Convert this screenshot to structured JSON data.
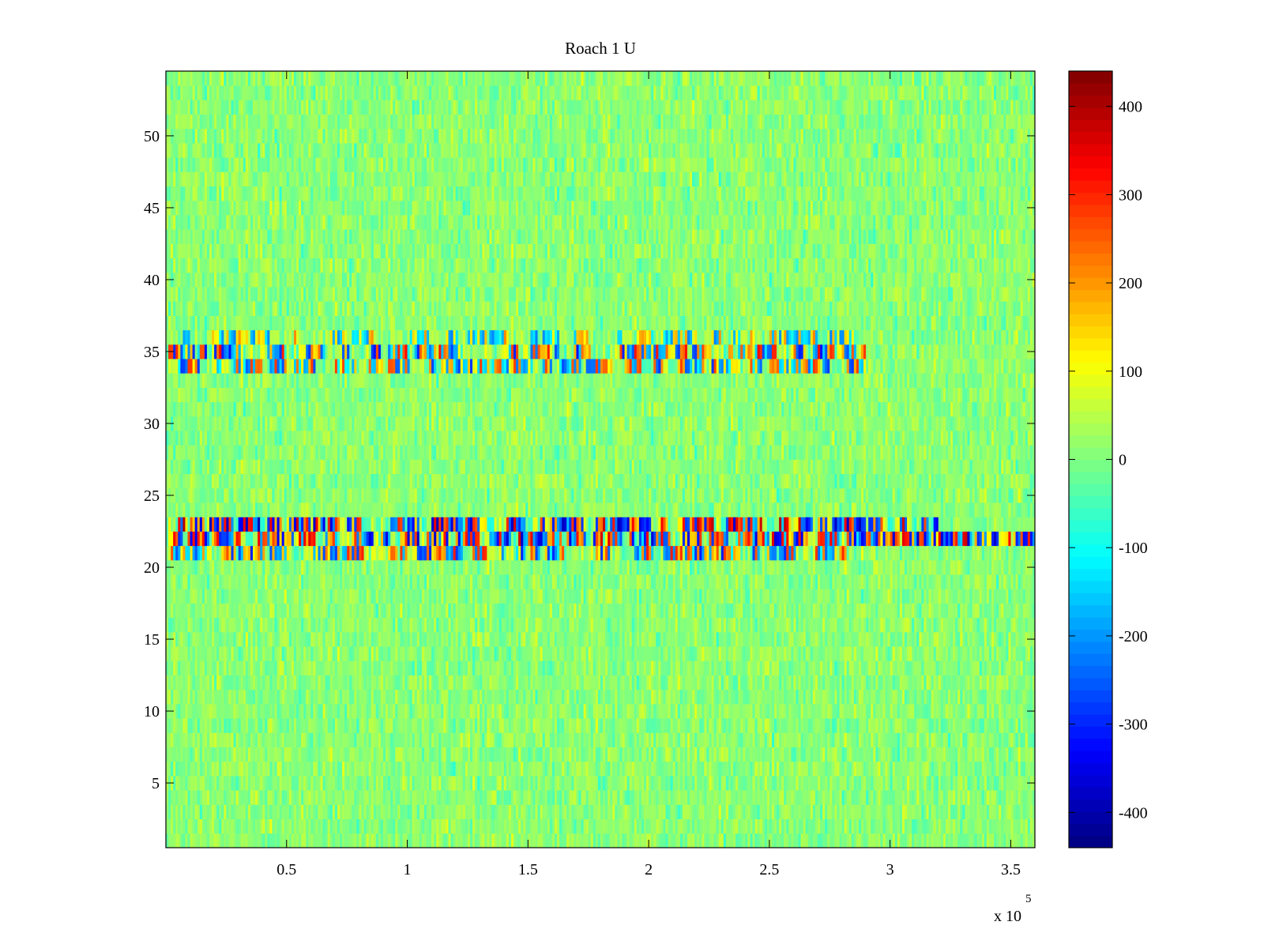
{
  "chart_data": {
    "type": "heatmap",
    "title": "Roach 1 U",
    "xlabel": "",
    "ylabel": "",
    "xlim": [
      0,
      360000
    ],
    "ylim": [
      0.5,
      54.5
    ],
    "x_ticks": [
      50000,
      100000,
      150000,
      200000,
      250000,
      300000,
      350000
    ],
    "x_tick_labels": [
      "0.5",
      "1",
      "1.5",
      "2",
      "2.5",
      "3",
      "3.5"
    ],
    "x_exponent_label": "x 10",
    "x_exponent_power": "5",
    "y_ticks": [
      5,
      10,
      15,
      20,
      25,
      30,
      35,
      40,
      45,
      50
    ],
    "y_tick_labels": [
      "5",
      "10",
      "15",
      "20",
      "25",
      "30",
      "35",
      "40",
      "45",
      "50"
    ],
    "colormap": "jet",
    "clim": [
      -440,
      440
    ],
    "colorbar": {
      "placement": "right",
      "ticks": [
        -400,
        -300,
        -200,
        -100,
        0,
        100,
        200,
        300,
        400
      ],
      "tick_labels": [
        "-400",
        "-300",
        "-200",
        "-100",
        "0",
        "100",
        "200",
        "300",
        "400"
      ]
    },
    "rows": 54,
    "row_baseline_mean": 10,
    "row_noise_amplitude": 40,
    "bands": [
      {
        "channel": 34,
        "x_range": [
          0,
          290000
        ],
        "amplitude": 260,
        "description_values": "strong alternating +/- activity"
      },
      {
        "channel": 35,
        "x_range": [
          0,
          290000
        ],
        "amplitude": 300
      },
      {
        "channel": 36,
        "x_range": [
          0,
          290000
        ],
        "amplitude": 200
      },
      {
        "channel": 21,
        "x_range": [
          0,
          290000
        ],
        "amplitude": 280
      },
      {
        "channel": 22,
        "x_range": [
          0,
          360000
        ],
        "amplitude": 340
      },
      {
        "channel": 23,
        "x_range": [
          0,
          320000
        ],
        "amplitude": 360
      }
    ]
  }
}
